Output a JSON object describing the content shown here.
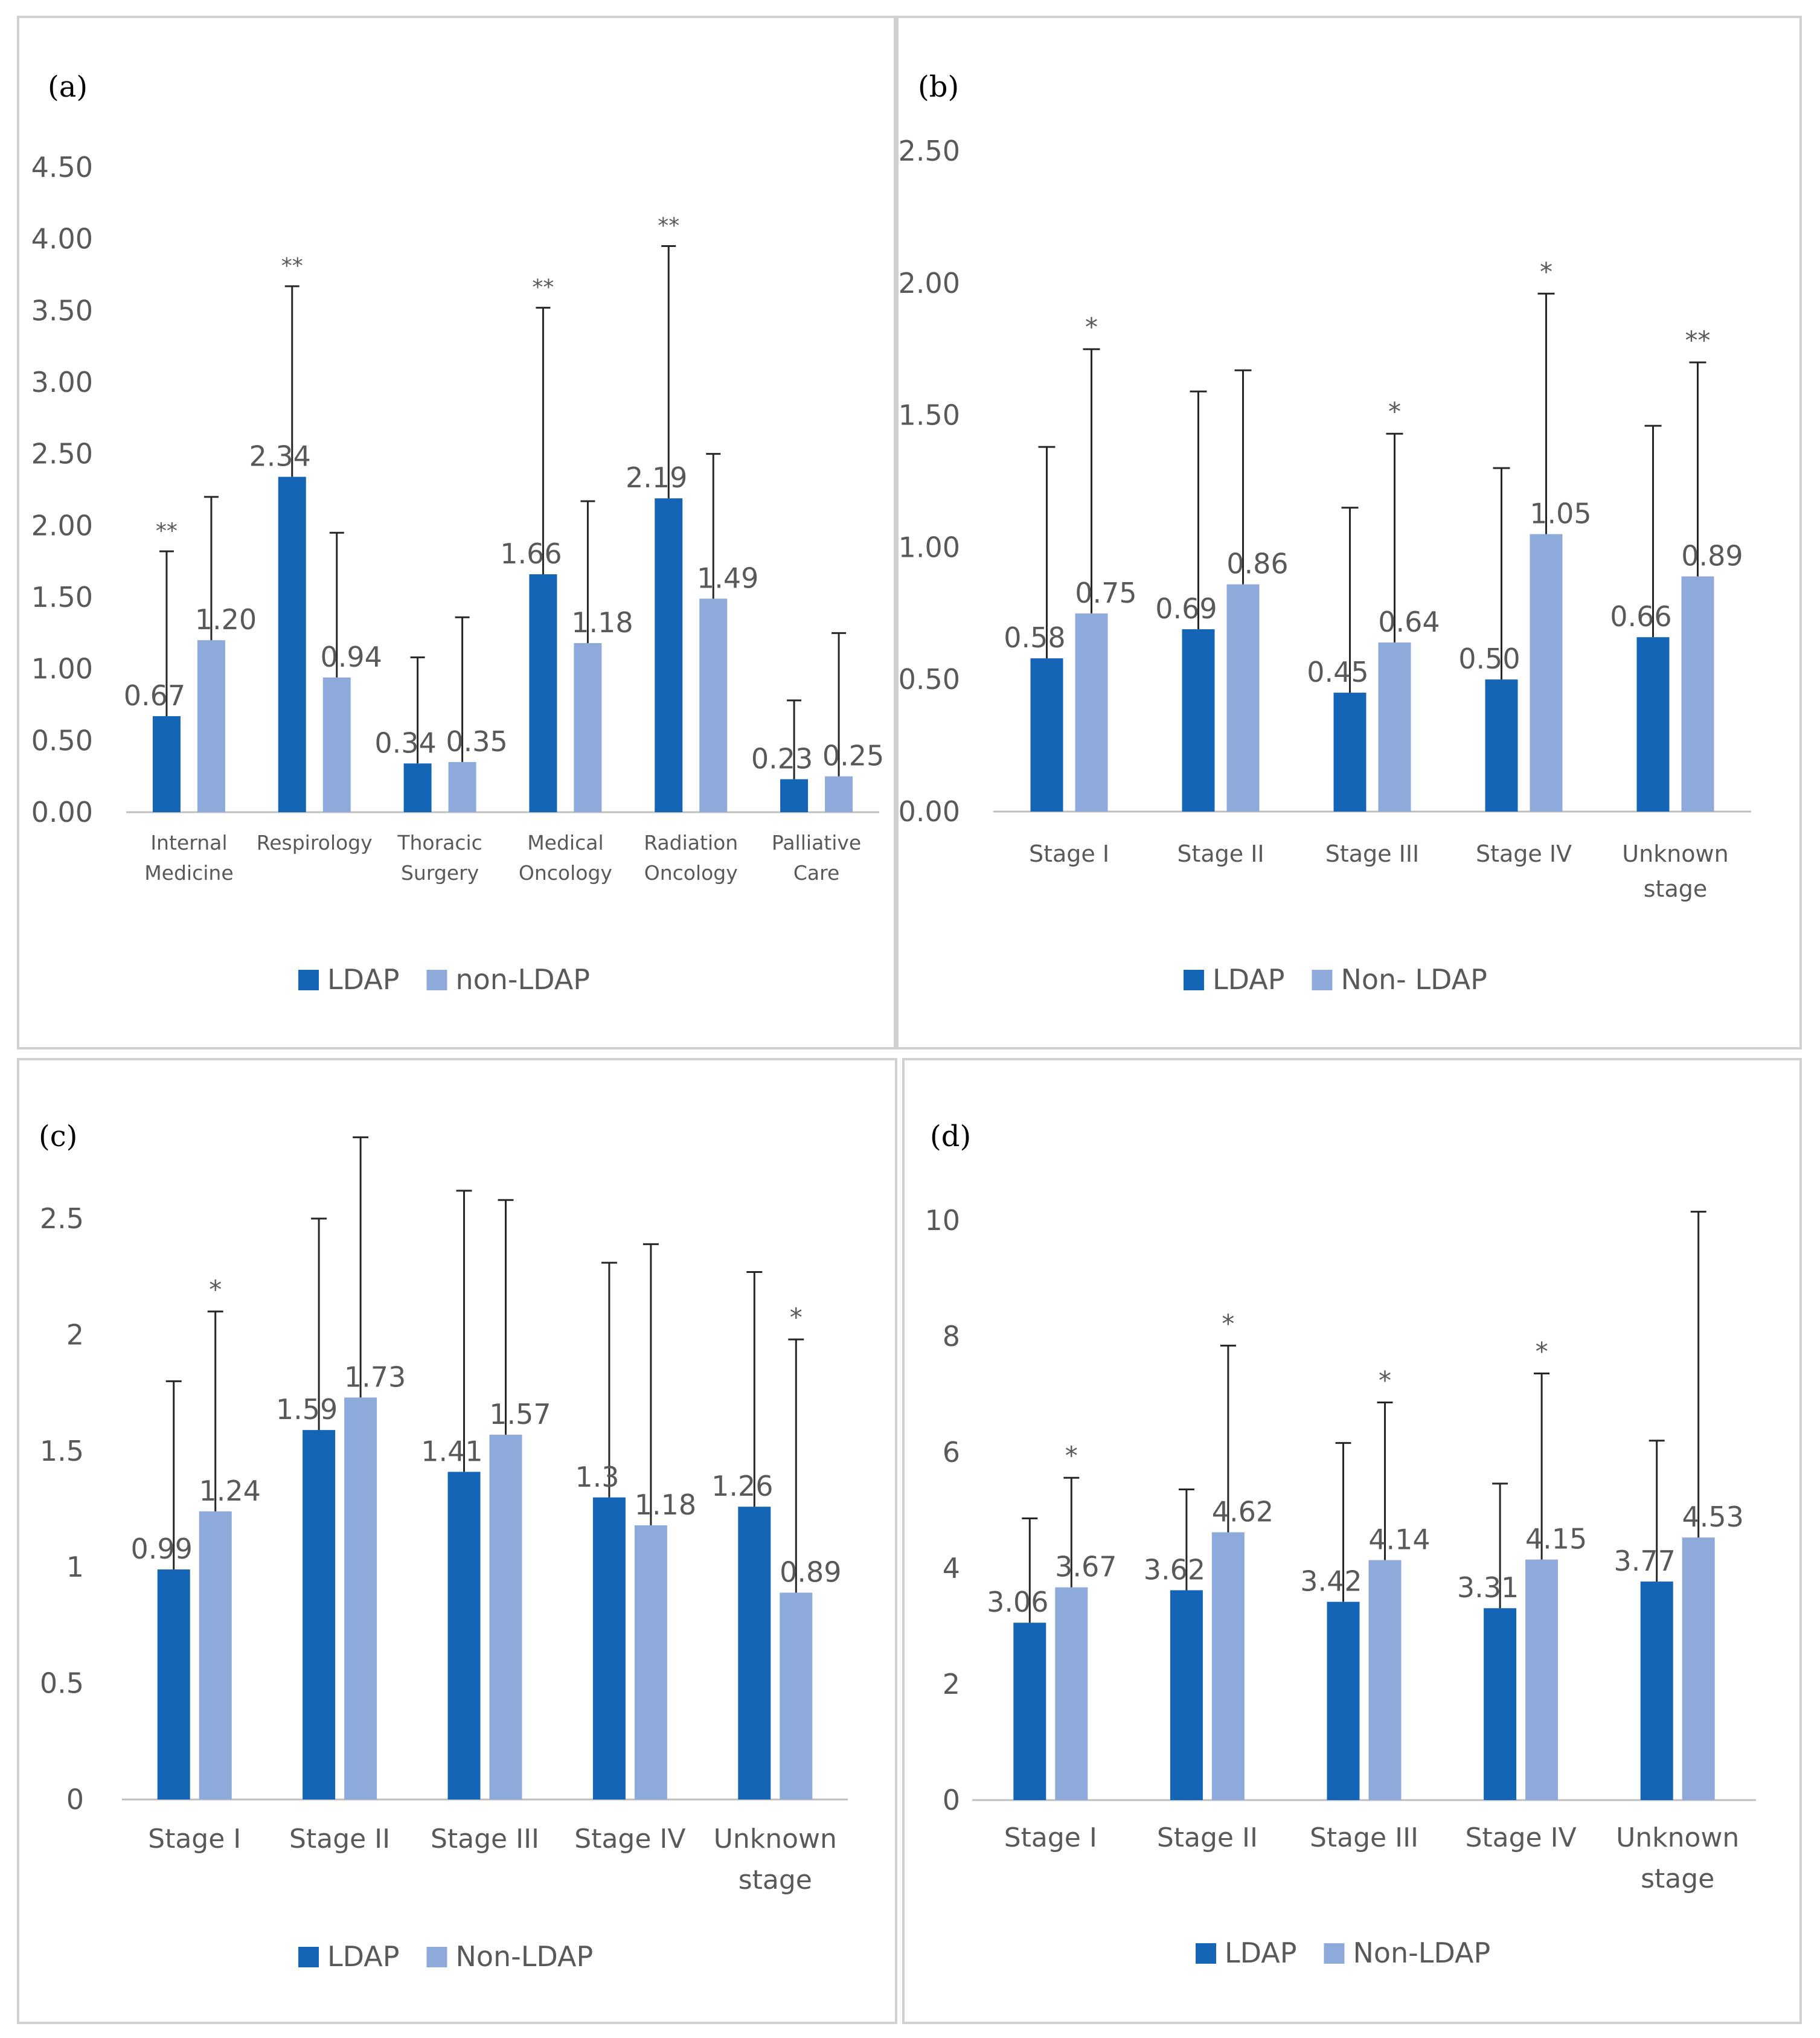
{
  "colors": {
    "ldap": "#1565b7",
    "nonldap": "#8eaadb",
    "axis": "#bfbfbf",
    "error": "#262626",
    "text": "#595959"
  },
  "chart_data": [
    {
      "panel": "(a)",
      "type": "bar",
      "ylim": [
        0,
        4.5
      ],
      "yticks": [
        "0.00",
        "0.50",
        "1.00",
        "1.50",
        "2.00",
        "2.50",
        "3.00",
        "3.50",
        "4.00",
        "4.50"
      ],
      "yticks_values": [
        0,
        0.5,
        1,
        1.5,
        2,
        2.5,
        3,
        3.5,
        4,
        4.5
      ],
      "categories": [
        [
          "Internal",
          "Medicine"
        ],
        [
          "Respirology"
        ],
        [
          "Thoracic",
          "Surgery"
        ],
        [
          "Medical",
          "Oncology"
        ],
        [
          "Radiation",
          "Oncology"
        ],
        [
          "Palliative",
          "Care"
        ]
      ],
      "series": [
        {
          "name": "LDAP",
          "values": [
            0.67,
            2.34,
            0.34,
            1.66,
            2.19,
            0.23
          ],
          "labels": [
            "0.67",
            "2.34",
            "0.34",
            "1.66",
            "2.19",
            "0.23"
          ],
          "err_top": [
            1.82,
            3.67,
            1.08,
            3.52,
            3.95,
            0.78
          ]
        },
        {
          "name": "non-LDAP",
          "values": [
            1.2,
            0.94,
            0.35,
            1.18,
            1.49,
            0.25
          ],
          "labels": [
            "1.20",
            "0.94",
            "0.35",
            "1.18",
            "1.49",
            "0.25"
          ],
          "err_top": [
            2.2,
            1.95,
            1.36,
            2.17,
            2.5,
            1.25
          ]
        }
      ],
      "significance": [
        {
          "category": 0,
          "series": 0,
          "label": "**"
        },
        {
          "category": 1,
          "series": 0,
          "label": "**"
        },
        {
          "category": 3,
          "series": 0,
          "label": "**"
        },
        {
          "category": 4,
          "series": 0,
          "label": "**"
        }
      ],
      "legend": [
        "LDAP",
        "non-LDAP"
      ],
      "legend_position": "bottom",
      "grid": false
    },
    {
      "panel": "(b)",
      "type": "bar",
      "ylim": [
        0,
        2.5
      ],
      "yticks": [
        "0.00",
        "0.50",
        "1.00",
        "1.50",
        "2.00",
        "2.50"
      ],
      "yticks_values": [
        0,
        0.5,
        1,
        1.5,
        2,
        2.5
      ],
      "categories": [
        [
          "Stage I"
        ],
        [
          "Stage II"
        ],
        [
          "Stage III"
        ],
        [
          "Stage IV"
        ],
        [
          "Unknown",
          "stage"
        ]
      ],
      "series": [
        {
          "name": "LDAP",
          "values": [
            0.58,
            0.69,
            0.45,
            0.5,
            0.66
          ],
          "labels": [
            "0.58",
            "0.69",
            "0.45",
            "0.50",
            "0.66"
          ],
          "err_top": [
            1.38,
            1.59,
            1.15,
            1.3,
            1.46
          ]
        },
        {
          "name": "Non- LDAP",
          "values": [
            0.75,
            0.86,
            0.64,
            1.05,
            0.89
          ],
          "labels": [
            "0.75",
            "0.86",
            "0.64",
            "1.05",
            "0.89"
          ],
          "err_top": [
            1.75,
            1.67,
            1.43,
            1.96,
            1.7
          ]
        }
      ],
      "significance": [
        {
          "category": 0,
          "series": 1,
          "label": "*"
        },
        {
          "category": 2,
          "series": 1,
          "label": "*"
        },
        {
          "category": 3,
          "series": 1,
          "label": "*"
        },
        {
          "category": 4,
          "series": 1,
          "label": "**"
        }
      ],
      "legend": [
        "LDAP",
        "Non- LDAP"
      ],
      "legend_position": "bottom",
      "grid": false
    },
    {
      "panel": "(c)",
      "type": "bar",
      "ylim": [
        0,
        2.5
      ],
      "yticks": [
        "0",
        "0.5",
        "1",
        "1.5",
        "2",
        "2.5"
      ],
      "yticks_values": [
        0,
        0.5,
        1,
        1.5,
        2,
        2.5
      ],
      "categories": [
        [
          "Stage I"
        ],
        [
          "Stage II"
        ],
        [
          "Stage III"
        ],
        [
          "Stage IV"
        ],
        [
          "Unknown",
          "stage"
        ]
      ],
      "series": [
        {
          "name": "LDAP",
          "values": [
            0.99,
            1.59,
            1.41,
            1.3,
            1.26
          ],
          "labels": [
            "0.99",
            "1.59",
            "1.41",
            "1.3",
            "1.26"
          ],
          "err_top": [
            1.8,
            2.5,
            2.62,
            2.31,
            2.27
          ]
        },
        {
          "name": "Non-LDAP",
          "values": [
            1.24,
            1.73,
            1.57,
            1.18,
            0.89
          ],
          "labels": [
            "1.24",
            "1.73",
            "1.57",
            "1.18",
            "0.89"
          ],
          "err_top": [
            2.1,
            2.85,
            2.58,
            2.39,
            1.98
          ]
        }
      ],
      "significance": [
        {
          "category": 0,
          "series": 1,
          "label": "*"
        },
        {
          "category": 4,
          "series": 1,
          "label": "*"
        }
      ],
      "legend": [
        "LDAP",
        "Non-LDAP"
      ],
      "legend_position": "bottom",
      "grid": false
    },
    {
      "panel": "(d)",
      "type": "bar",
      "ylim": [
        0,
        10
      ],
      "yticks": [
        "0",
        "2",
        "4",
        "6",
        "8",
        "10"
      ],
      "yticks_values": [
        0,
        2,
        4,
        6,
        8,
        10
      ],
      "categories": [
        [
          "Stage I"
        ],
        [
          "Stage II"
        ],
        [
          "Stage III"
        ],
        [
          "Stage IV"
        ],
        [
          "Unknown",
          "stage"
        ]
      ],
      "series": [
        {
          "name": "LDAP",
          "values": [
            3.06,
            3.62,
            3.42,
            3.31,
            3.77
          ],
          "labels": [
            "3.06",
            "3.62",
            "3.42",
            "3.31",
            "3.77"
          ],
          "err_top": [
            4.86,
            5.36,
            6.16,
            5.46,
            6.2
          ]
        },
        {
          "name": "Non-LDAP",
          "values": [
            3.67,
            4.62,
            4.14,
            4.15,
            4.53
          ],
          "labels": [
            "3.67",
            "4.62",
            "4.14",
            "4.15",
            "4.53"
          ],
          "err_top": [
            5.56,
            7.84,
            6.86,
            7.36,
            10.15
          ]
        }
      ],
      "significance": [
        {
          "category": 0,
          "series": 1,
          "label": "*"
        },
        {
          "category": 1,
          "series": 1,
          "label": "*"
        },
        {
          "category": 2,
          "series": 1,
          "label": "*"
        },
        {
          "category": 3,
          "series": 1,
          "label": "*"
        }
      ],
      "legend": [
        "LDAP",
        "Non-LDAP"
      ],
      "legend_position": "bottom",
      "grid": false
    }
  ]
}
